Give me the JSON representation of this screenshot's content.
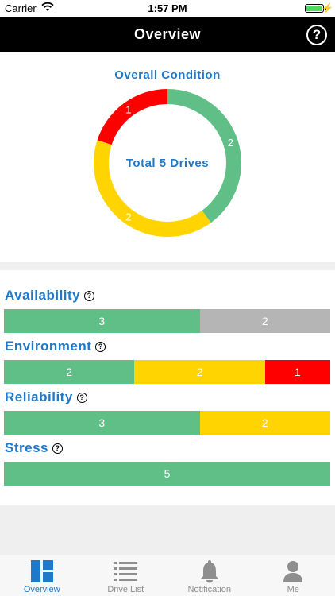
{
  "status_bar": {
    "carrier": "Carrier",
    "time": "1:57 PM"
  },
  "nav": {
    "title": "Overview",
    "help_icon": "question-circle-icon"
  },
  "overall": {
    "title": "Overall Condition",
    "center_label": "Total 5 Drives",
    "chart_data": {
      "type": "pie",
      "donut": true,
      "slices": [
        {
          "label": "2",
          "value": 2,
          "color": "#5fbf87"
        },
        {
          "label": "2",
          "value": 2,
          "color": "#ffd400"
        },
        {
          "label": "1",
          "value": 1,
          "color": "#ff0000"
        }
      ]
    }
  },
  "categories": [
    {
      "title": "Availability",
      "segments": [
        {
          "label": "3",
          "value": 3,
          "color": "#5fbf87"
        },
        {
          "label": "2",
          "value": 2,
          "color": "#b5b5b5"
        }
      ]
    },
    {
      "title": "Environment",
      "segments": [
        {
          "label": "2",
          "value": 2,
          "color": "#5fbf87"
        },
        {
          "label": "2",
          "value": 2,
          "color": "#ffd400"
        },
        {
          "label": "1",
          "value": 1,
          "color": "#ff0000"
        }
      ]
    },
    {
      "title": "Reliability",
      "segments": [
        {
          "label": "3",
          "value": 3,
          "color": "#5fbf87"
        },
        {
          "label": "2",
          "value": 2,
          "color": "#ffd400"
        }
      ]
    },
    {
      "title": "Stress",
      "segments": [
        {
          "label": "5",
          "value": 5,
          "color": "#5fbf87"
        }
      ]
    }
  ],
  "tabs": [
    {
      "label": "Overview",
      "icon": "dashboard-icon",
      "active": true
    },
    {
      "label": "Drive List",
      "icon": "list-icon",
      "active": false
    },
    {
      "label": "Notification",
      "icon": "bell-icon",
      "active": false
    },
    {
      "label": "Me",
      "icon": "person-icon",
      "active": false
    }
  ],
  "colors": {
    "accent": "#1f78c8",
    "good": "#5fbf87",
    "warning": "#ffd400",
    "alarm": "#ff0000",
    "unknown": "#b5b5b5"
  }
}
